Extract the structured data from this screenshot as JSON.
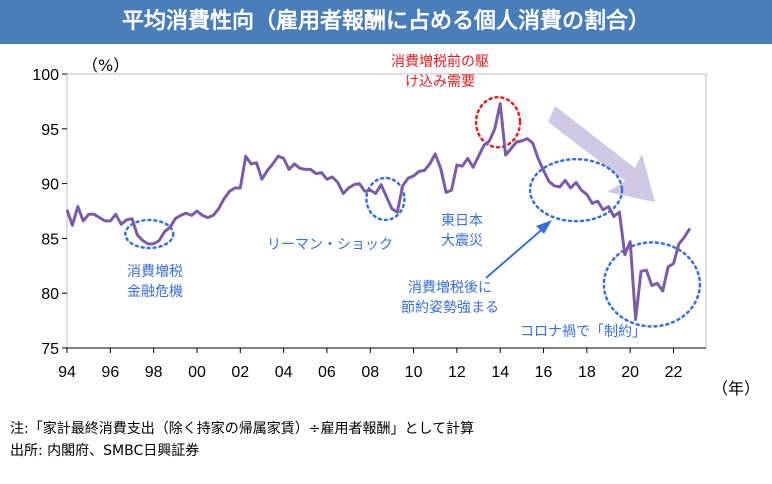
{
  "title": "平均消費性向（雇用者報酬に占める個人消費の割合）",
  "notes": {
    "note": "注:「家計最終消費支出（除く持家の帰属家賃）÷雇用者報酬」として計算",
    "source": "出所: 内閣府、SMBC日興証券"
  },
  "colors": {
    "title_bg": "#4a7ebb",
    "line": "#7a5ca8",
    "annotation_blue": "#3a6fd8",
    "annotation_red": "#e02020",
    "arrow_fill": "#c8c0e0"
  },
  "chart_data": {
    "type": "line",
    "title": "平均消費性向（雇用者報酬に占める個人消費の割合）",
    "ylabel": "（%）",
    "xlabel": "（年）",
    "ylim": [
      75,
      100
    ],
    "xlim": [
      1994,
      2023.5
    ],
    "yticks": [
      75,
      80,
      85,
      90,
      95,
      100
    ],
    "xticks": [
      1994,
      1996,
      1998,
      2000,
      2002,
      2004,
      2006,
      2008,
      2010,
      2012,
      2014,
      2016,
      2018,
      2020,
      2022
    ],
    "xtick_labels": [
      "94",
      "96",
      "98",
      "00",
      "02",
      "04",
      "06",
      "08",
      "10",
      "12",
      "14",
      "16",
      "18",
      "20",
      "22"
    ],
    "series": [
      {
        "name": "平均消費性向",
        "x": [
          1994.0,
          1994.25,
          1994.5,
          1994.75,
          1995.0,
          1995.25,
          1995.5,
          1995.75,
          1996.0,
          1996.25,
          1996.5,
          1996.75,
          1997.0,
          1997.25,
          1997.5,
          1997.75,
          1998.0,
          1998.25,
          1998.5,
          1998.75,
          1999.0,
          1999.25,
          1999.5,
          1999.75,
          2000.0,
          2000.25,
          2000.5,
          2000.75,
          2001.0,
          2001.25,
          2001.5,
          2001.75,
          2002.0,
          2002.25,
          2002.5,
          2002.75,
          2003.0,
          2003.25,
          2003.5,
          2003.75,
          2004.0,
          2004.25,
          2004.5,
          2004.75,
          2005.0,
          2005.25,
          2005.5,
          2005.75,
          2006.0,
          2006.25,
          2006.5,
          2006.75,
          2007.0,
          2007.25,
          2007.5,
          2007.75,
          2008.0,
          2008.25,
          2008.5,
          2008.75,
          2009.0,
          2009.25,
          2009.5,
          2009.75,
          2010.0,
          2010.25,
          2010.5,
          2010.75,
          2011.0,
          2011.25,
          2011.5,
          2011.75,
          2012.0,
          2012.25,
          2012.5,
          2012.75,
          2013.0,
          2013.25,
          2013.5,
          2013.75,
          2014.0,
          2014.25,
          2014.5,
          2014.75,
          2015.0,
          2015.25,
          2015.5,
          2015.75,
          2016.0,
          2016.25,
          2016.5,
          2016.75,
          2017.0,
          2017.25,
          2017.5,
          2017.75,
          2018.0,
          2018.25,
          2018.5,
          2018.75,
          2019.0,
          2019.25,
          2019.5,
          2019.75,
          2020.0,
          2020.25,
          2020.5,
          2020.75,
          2021.0,
          2021.25,
          2021.5,
          2021.75,
          2022.0,
          2022.25,
          2022.5,
          2022.75
        ],
        "values": [
          87.6,
          86.2,
          87.9,
          86.6,
          87.2,
          87.2,
          86.9,
          86.6,
          86.6,
          87.2,
          86.3,
          86.7,
          86.8,
          85.3,
          84.8,
          84.5,
          84.5,
          84.8,
          85.6,
          86.0,
          86.8,
          87.1,
          87.3,
          87.1,
          87.5,
          87.1,
          86.9,
          87.1,
          87.7,
          88.6,
          89.3,
          89.6,
          89.6,
          92.5,
          91.8,
          91.9,
          90.4,
          91.2,
          91.8,
          92.5,
          92.3,
          91.3,
          91.8,
          91.4,
          91.3,
          91.3,
          90.9,
          91.0,
          90.4,
          90.6,
          90.1,
          89.1,
          89.6,
          89.9,
          90.0,
          89.3,
          89.4,
          89.1,
          89.9,
          88.8,
          87.7,
          87.4,
          89.8,
          90.5,
          90.7,
          91.1,
          91.2,
          91.8,
          92.7,
          91.4,
          89.2,
          89.4,
          91.7,
          91.6,
          92.3,
          91.5,
          92.5,
          93.5,
          93.9,
          95.0,
          97.3,
          92.6,
          93.2,
          93.8,
          93.9,
          94.1,
          93.7,
          92.3,
          91.2,
          90.2,
          89.8,
          89.7,
          90.3,
          89.6,
          90.1,
          89.4,
          89.0,
          88.2,
          88.4,
          87.6,
          87.9,
          87.0,
          87.4,
          83.5,
          84.7,
          77.6,
          82.0,
          82.1,
          80.7,
          80.9,
          80.2,
          82.4,
          82.7,
          84.5,
          85.1,
          85.9
        ]
      }
    ],
    "annotations": {
      "crisis_1997": "消費増税\n金融危機",
      "lehman": "リーマン・ショック",
      "quake": "東日本\n大震災",
      "rush": "消費増税前の駆\nけ込み需要",
      "saving": "消費増税後に\n節約姿勢強まる",
      "covid": "コロナ禍で「制約」"
    }
  }
}
